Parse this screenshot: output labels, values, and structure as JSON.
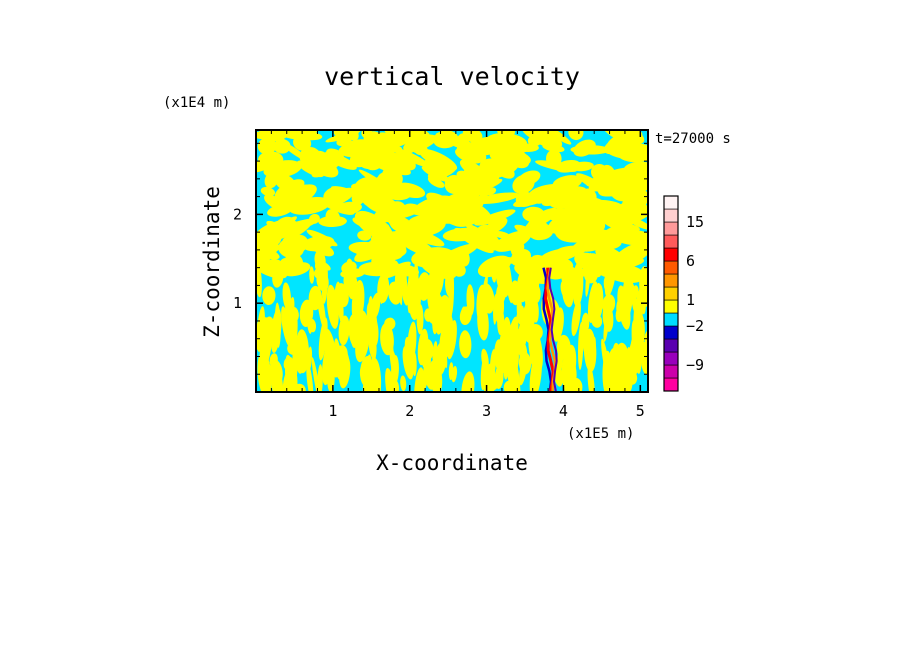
{
  "chart_data": {
    "type": "heatmap",
    "title": "vertical velocity",
    "xlabel": "X-coordinate",
    "ylabel": "Z-coordinate",
    "x_scale_label": "(x1E5 m)",
    "y_scale_label": "(x1E4 m)",
    "time_label": "t=27000 s",
    "xlim": [
      0,
      5.1
    ],
    "ylim": [
      0,
      2.95
    ],
    "x_ticks": [
      1,
      2,
      3,
      4,
      5
    ],
    "y_ticks": [
      1,
      2
    ],
    "x_tick_labels": [
      "1",
      "2",
      "3",
      "4",
      "5"
    ],
    "y_tick_labels": [
      "1",
      "2"
    ],
    "colorbar": {
      "levels": [
        -12,
        -9,
        -6,
        -4,
        -2,
        -1,
        1,
        2,
        4,
        6,
        9,
        12,
        15,
        18,
        21
      ],
      "labeled_ticks": [
        15,
        6,
        1,
        -2,
        -9
      ],
      "labels": [
        "15",
        "6",
        "1",
        "−2",
        "−9"
      ],
      "colors": [
        "#ff00a0",
        "#cc00aa",
        "#9900bb",
        "#5a00b0",
        "#0000cc",
        "#00dcff",
        "#ffff00",
        "#ffd000",
        "#ff9600",
        "#ff5a00",
        "#ff0000",
        "#ff5a5a",
        "#ff9a9a",
        "#ffd0d0",
        "#fff3f3"
      ]
    },
    "field": {
      "background_color": "#00e5ff",
      "positive_color": "#ffff00",
      "pattern": "alternating streaky bands of weak positive (1 to 2) and weak negative (-1 to -2) values",
      "strong_updraft_column": {
        "x_center": 3.78,
        "z_top": 1.4
      }
    }
  }
}
